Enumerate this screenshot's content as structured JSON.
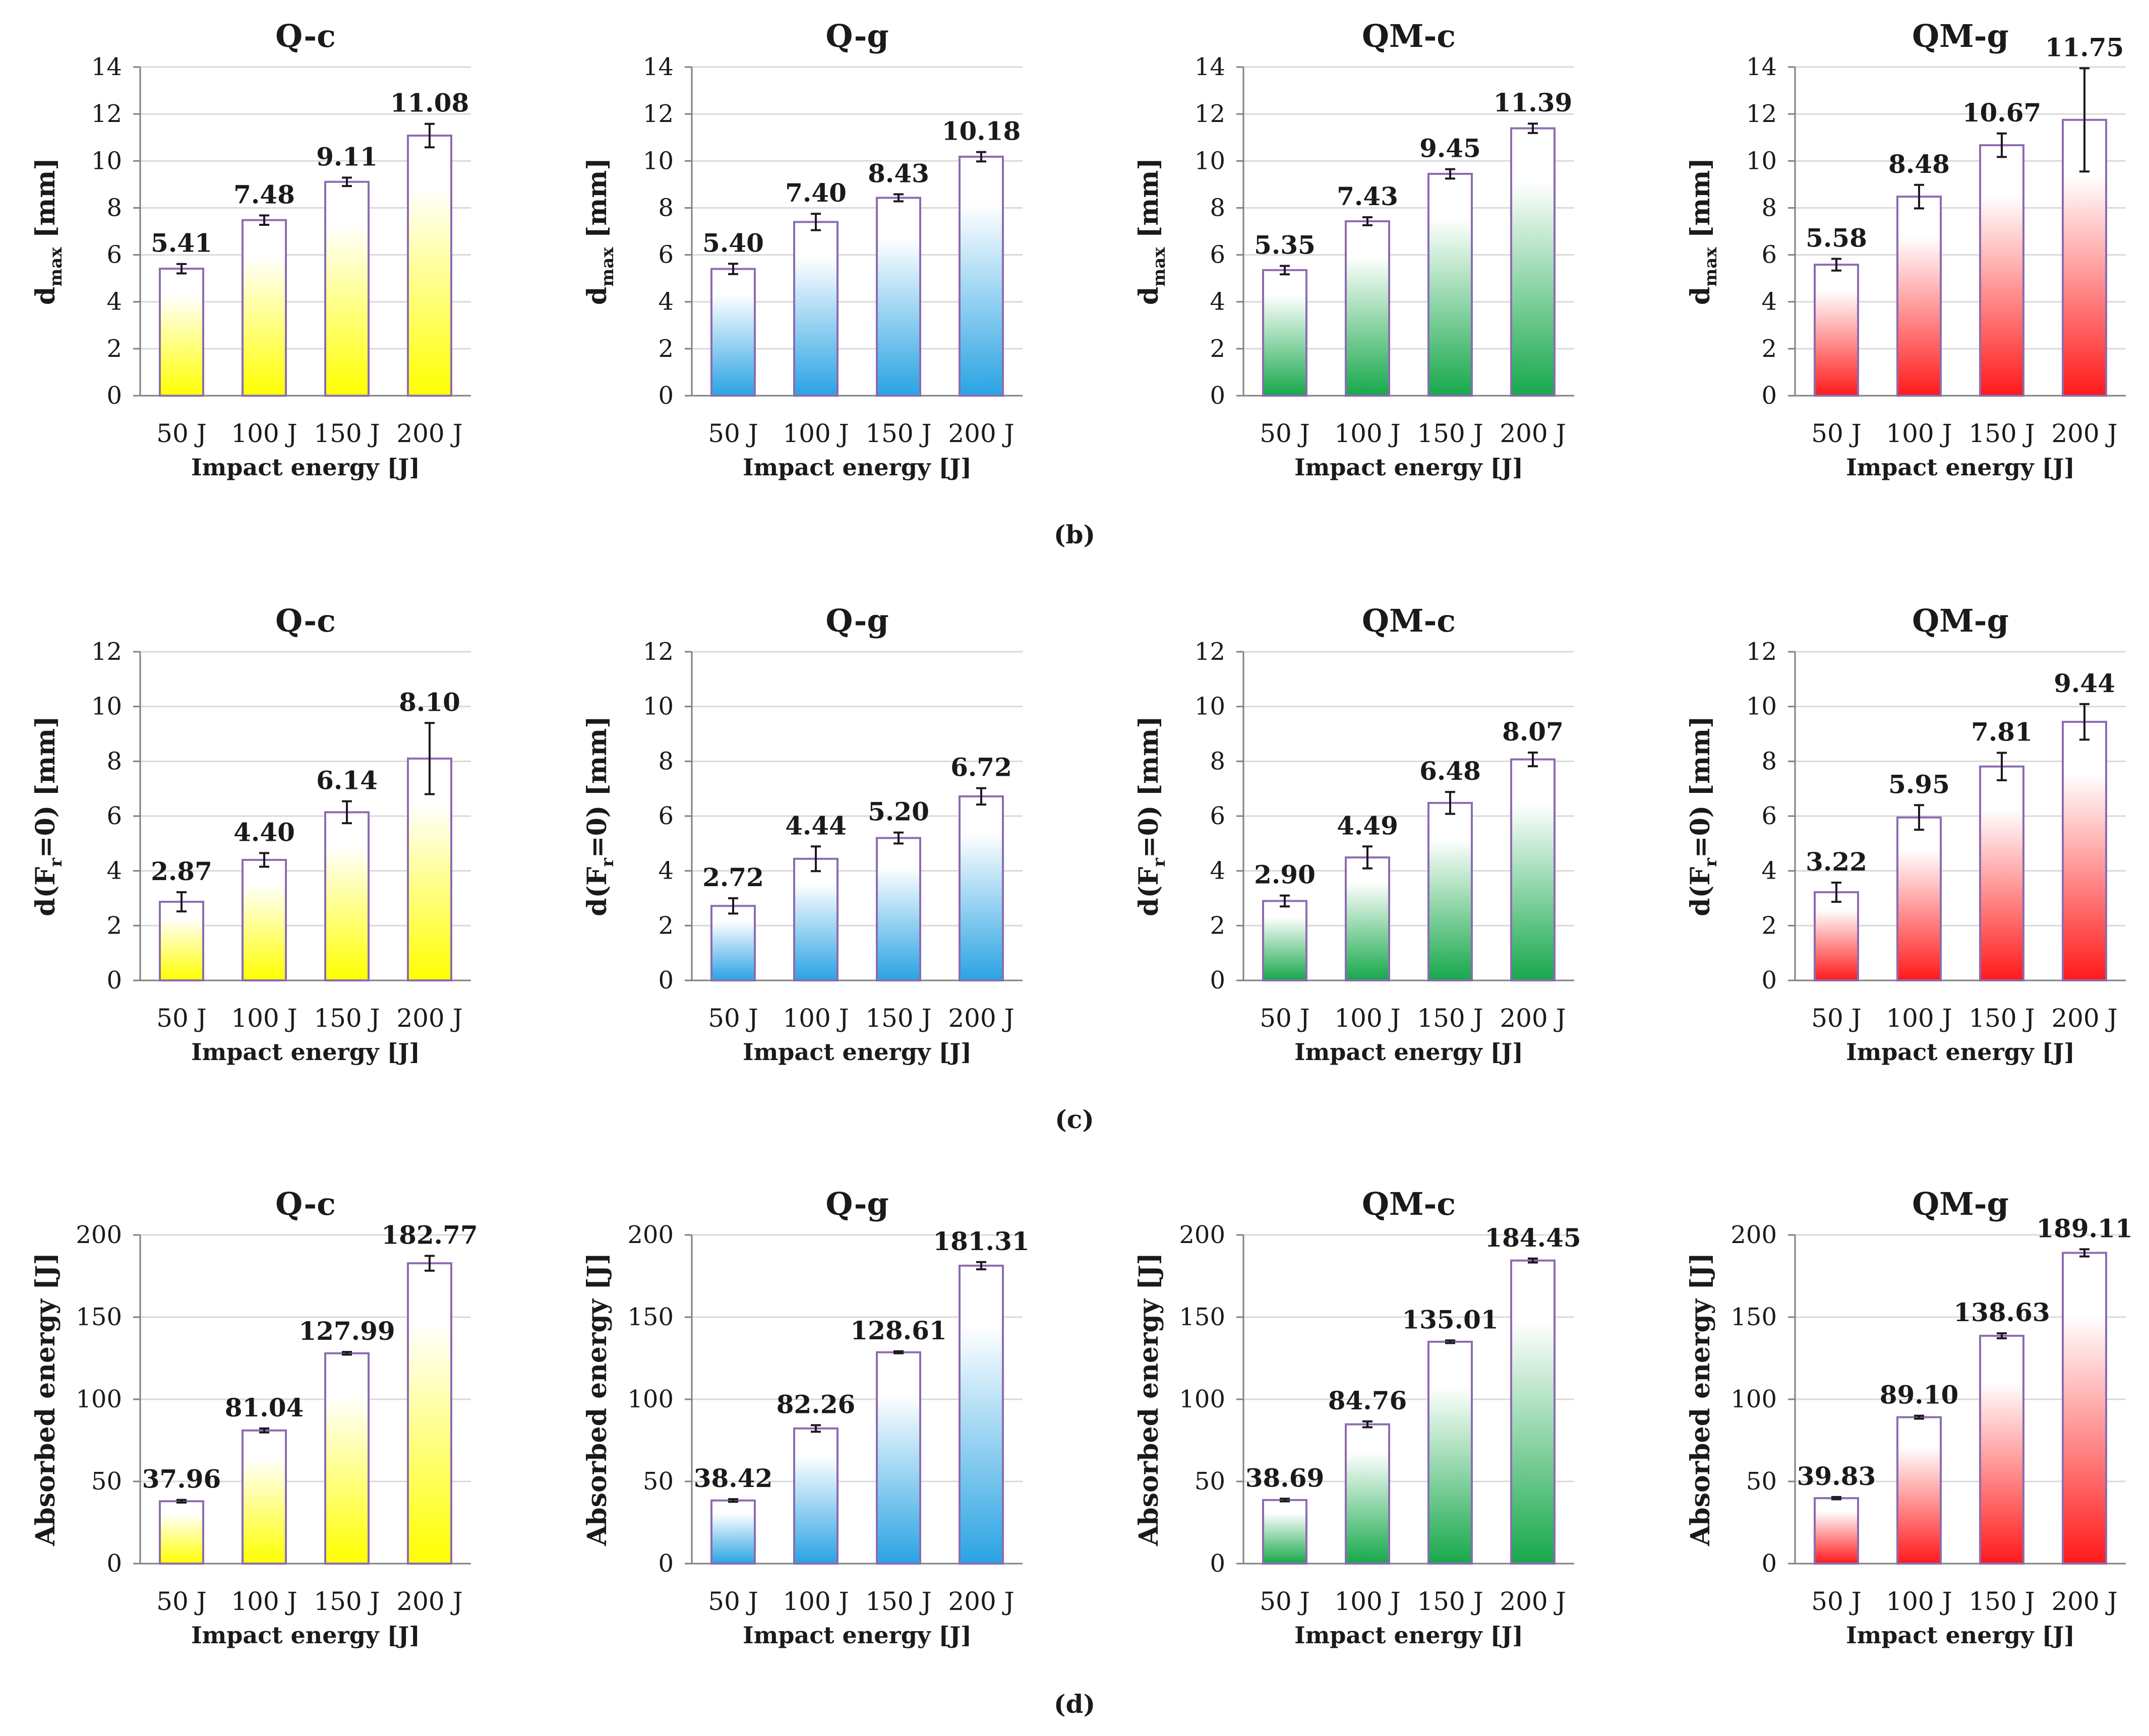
{
  "figure": {
    "row_labels": [
      "(b)",
      "(c)",
      "(d)"
    ]
  },
  "styles": [
    {
      "name": "yellow",
      "color": "#ffff00"
    },
    {
      "name": "blue",
      "color": "#29a3e3"
    },
    {
      "name": "green",
      "color": "#16a84a"
    },
    {
      "name": "red",
      "color": "#ff1a1a"
    }
  ],
  "colors": {
    "bar_edge": "#8c6cb0",
    "axis": "#7f7f7f",
    "grid": "#d9d9d9",
    "error_bar": "#1a1a1a"
  },
  "chart_data": [
    {
      "type": "bar",
      "title": "Q-c",
      "ylabel_main": "d",
      "ylabel_sub": "max",
      "ylabel_tail": " [mm]",
      "xlabel": "Impact energy [J]",
      "categories": [
        "50 J",
        "100 J",
        "150 J",
        "200 J"
      ],
      "values": [
        5.41,
        7.48,
        9.11,
        11.08
      ],
      "labels": [
        "5.41",
        "7.48",
        "9.11",
        "11.08"
      ],
      "errors": [
        0.2,
        0.2,
        0.18,
        0.5
      ],
      "ylim": [
        0,
        14
      ],
      "yticks": [
        0,
        2,
        4,
        6,
        8,
        10,
        12,
        14
      ],
      "style": 0
    },
    {
      "type": "bar",
      "title": "Q-g",
      "ylabel_main": "d",
      "ylabel_sub": "max",
      "ylabel_tail": " [mm]",
      "xlabel": "Impact energy [J]",
      "categories": [
        "50 J",
        "100 J",
        "150 J",
        "200 J"
      ],
      "values": [
        5.4,
        7.4,
        8.43,
        10.18
      ],
      "labels": [
        "5.40",
        "7.40",
        "8.43",
        "10.18"
      ],
      "errors": [
        0.22,
        0.35,
        0.15,
        0.2
      ],
      "ylim": [
        0,
        14
      ],
      "yticks": [
        0,
        2,
        4,
        6,
        8,
        10,
        12,
        14
      ],
      "style": 1
    },
    {
      "type": "bar",
      "title": "QM-c",
      "ylabel_main": "d",
      "ylabel_sub": "max",
      "ylabel_tail": " [mm]",
      "xlabel": "Impact energy [J]",
      "categories": [
        "50 J",
        "100 J",
        "150 J",
        "200 J"
      ],
      "values": [
        5.35,
        7.43,
        9.45,
        11.39
      ],
      "labels": [
        "5.35",
        "7.43",
        "9.45",
        "11.39"
      ],
      "errors": [
        0.18,
        0.17,
        0.2,
        0.2
      ],
      "ylim": [
        0,
        14
      ],
      "yticks": [
        0,
        2,
        4,
        6,
        8,
        10,
        12,
        14
      ],
      "style": 2
    },
    {
      "type": "bar",
      "title": "QM-g",
      "ylabel_main": "d",
      "ylabel_sub": "max",
      "ylabel_tail": " [mm]",
      "xlabel": "Impact energy [J]",
      "categories": [
        "50 J",
        "100 J",
        "150 J",
        "200 J"
      ],
      "values": [
        5.58,
        8.48,
        10.67,
        11.75
      ],
      "labels": [
        "5.58",
        "8.48",
        "10.67",
        "11.75"
      ],
      "errors": [
        0.25,
        0.5,
        0.5,
        2.2
      ],
      "ylim": [
        0,
        14
      ],
      "yticks": [
        0,
        2,
        4,
        6,
        8,
        10,
        12,
        14
      ],
      "style": 3
    },
    {
      "type": "bar",
      "title": "Q-c",
      "ylabel_main": "d(F",
      "ylabel_sub": "r",
      "ylabel_tail": "=0) [mm]",
      "xlabel": "Impact energy [J]",
      "categories": [
        "50 J",
        "100 J",
        "150 J",
        "200 J"
      ],
      "values": [
        2.87,
        4.4,
        6.14,
        8.1
      ],
      "labels": [
        "2.87",
        "4.40",
        "6.14",
        "8.10"
      ],
      "errors": [
        0.35,
        0.25,
        0.4,
        1.3
      ],
      "ylim": [
        0,
        12
      ],
      "yticks": [
        0,
        2,
        4,
        6,
        8,
        10,
        12
      ],
      "style": 0
    },
    {
      "type": "bar",
      "title": "Q-g",
      "ylabel_main": "d(F",
      "ylabel_sub": "r",
      "ylabel_tail": "=0) [mm]",
      "xlabel": "Impact energy [J]",
      "categories": [
        "50 J",
        "100 J",
        "150 J",
        "200 J"
      ],
      "values": [
        2.72,
        4.44,
        5.2,
        6.72
      ],
      "labels": [
        "2.72",
        "4.44",
        "5.20",
        "6.72"
      ],
      "errors": [
        0.28,
        0.45,
        0.2,
        0.3
      ],
      "ylim": [
        0,
        12
      ],
      "yticks": [
        0,
        2,
        4,
        6,
        8,
        10,
        12
      ],
      "style": 1
    },
    {
      "type": "bar",
      "title": "QM-c",
      "ylabel_main": "d(F",
      "ylabel_sub": "r",
      "ylabel_tail": "=0) [mm]",
      "xlabel": "Impact energy [J]",
      "categories": [
        "50 J",
        "100 J",
        "150 J",
        "200 J"
      ],
      "values": [
        2.9,
        4.49,
        6.48,
        8.07
      ],
      "labels": [
        "2.90",
        "4.49",
        "6.48",
        "8.07"
      ],
      "errors": [
        0.2,
        0.4,
        0.4,
        0.25
      ],
      "ylim": [
        0,
        12
      ],
      "yticks": [
        0,
        2,
        4,
        6,
        8,
        10,
        12
      ],
      "style": 2
    },
    {
      "type": "bar",
      "title": "QM-g",
      "ylabel_main": "d(F",
      "ylabel_sub": "r",
      "ylabel_tail": "=0) [mm]",
      "xlabel": "Impact energy [J]",
      "categories": [
        "50 J",
        "100 J",
        "150 J",
        "200 J"
      ],
      "values": [
        3.22,
        5.95,
        7.81,
        9.44
      ],
      "labels": [
        "3.22",
        "5.95",
        "7.81",
        "9.44"
      ],
      "errors": [
        0.35,
        0.45,
        0.5,
        0.65
      ],
      "ylim": [
        0,
        12
      ],
      "yticks": [
        0,
        2,
        4,
        6,
        8,
        10,
        12
      ],
      "style": 3
    },
    {
      "type": "bar",
      "title": "Q-c",
      "ylabel_main": "Absorbed energy [J]",
      "ylabel_sub": "",
      "ylabel_tail": "",
      "xlabel": "Impact energy [J]",
      "categories": [
        "50 J",
        "100 J",
        "150 J",
        "200 J"
      ],
      "values": [
        37.96,
        81.04,
        127.99,
        182.77
      ],
      "labels": [
        "37.96",
        "81.04",
        "127.99",
        "182.77"
      ],
      "errors": [
        0.8,
        1.2,
        0.8,
        4.5
      ],
      "ylim": [
        0,
        200
      ],
      "yticks": [
        0,
        50,
        100,
        150,
        200
      ],
      "style": 0
    },
    {
      "type": "bar",
      "title": "Q-g",
      "ylabel_main": "Absorbed energy [J]",
      "ylabel_sub": "",
      "ylabel_tail": "",
      "xlabel": "Impact energy [J]",
      "categories": [
        "50 J",
        "100 J",
        "150 J",
        "200 J"
      ],
      "values": [
        38.42,
        82.26,
        128.61,
        181.31
      ],
      "labels": [
        "38.42",
        "82.26",
        "128.61",
        "181.31"
      ],
      "errors": [
        0.8,
        2.0,
        0.6,
        2.2
      ],
      "ylim": [
        0,
        200
      ],
      "yticks": [
        0,
        50,
        100,
        150,
        200
      ],
      "style": 1
    },
    {
      "type": "bar",
      "title": "QM-c",
      "ylabel_main": "Absorbed energy [J]",
      "ylabel_sub": "",
      "ylabel_tail": "",
      "xlabel": "Impact energy [J]",
      "categories": [
        "50 J",
        "100 J",
        "150 J",
        "200 J"
      ],
      "values": [
        38.69,
        84.76,
        135.01,
        184.45
      ],
      "labels": [
        "38.69",
        "84.76",
        "135.01",
        "184.45"
      ],
      "errors": [
        0.8,
        1.8,
        0.8,
        1.2
      ],
      "ylim": [
        0,
        200
      ],
      "yticks": [
        0,
        50,
        100,
        150,
        200
      ],
      "style": 2
    },
    {
      "type": "bar",
      "title": "QM-g",
      "ylabel_main": "Absorbed energy [J]",
      "ylabel_sub": "",
      "ylabel_tail": "",
      "xlabel": "Impact energy [J]",
      "categories": [
        "50 J",
        "100 J",
        "150 J",
        "200 J"
      ],
      "values": [
        39.83,
        89.1,
        138.63,
        189.11
      ],
      "labels": [
        "39.83",
        "89.10",
        "138.63",
        "189.11"
      ],
      "errors": [
        0.7,
        0.9,
        1.5,
        2.2
      ],
      "ylim": [
        0,
        200
      ],
      "yticks": [
        0,
        50,
        100,
        150,
        200
      ],
      "style": 3
    }
  ]
}
